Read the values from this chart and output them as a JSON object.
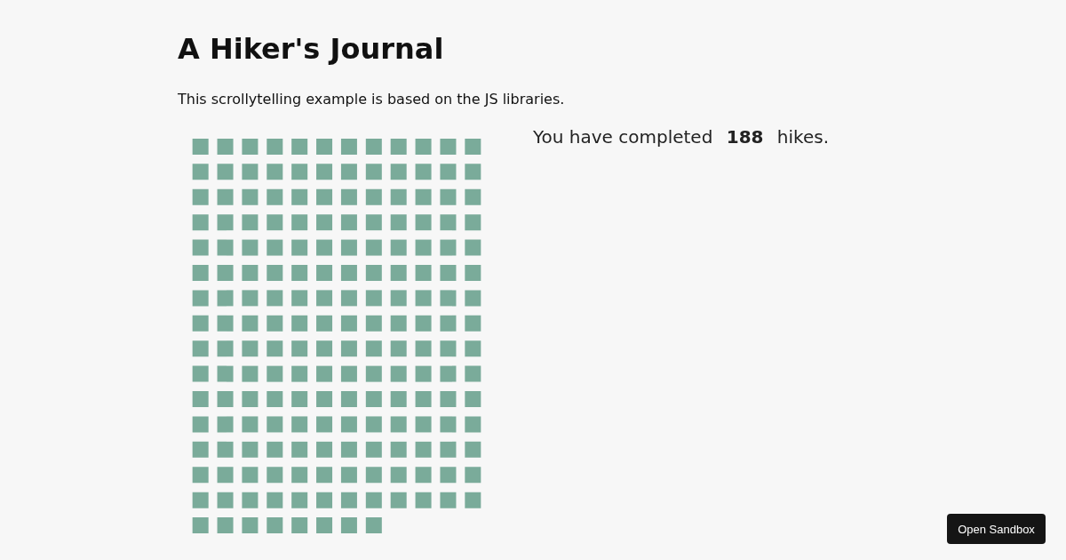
{
  "chart_data": {
    "type": "other",
    "title": "A Hiker's Journal",
    "subtitle": "This scrollytelling example is based on the JS libraries.",
    "values": [
      188
    ],
    "value_labels": [
      "188"
    ],
    "color": "#7aab9a",
    "annotations": [
      "You have completed",
      "hikes.",
      "Open Sandbox"
    ]
  }
}
